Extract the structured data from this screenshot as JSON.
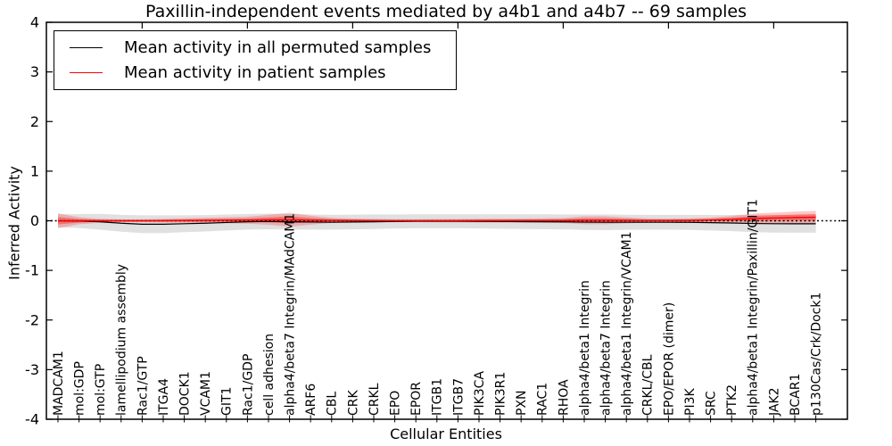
{
  "title": "Paxillin-independent events mediated by a4b1 and a4b7 -- 69 samples",
  "legend": {
    "items": [
      {
        "label": "Mean activity in all permuted samples",
        "color": "#000000"
      },
      {
        "label": "Mean activity in patient samples",
        "color": "#ff0000"
      }
    ],
    "position": "upper left"
  },
  "chart_data": {
    "type": "line",
    "title": "Paxillin-independent events mediated by a4b1 and a4b7 -- 69 samples",
    "xlabel": "Cellular Entities",
    "ylabel": "Inferred Activity",
    "ylim": [
      -4,
      4
    ],
    "yticks": [
      -4,
      -3,
      -2,
      -1,
      0,
      1,
      2,
      3,
      4
    ],
    "ytick_labels": [
      "-4",
      "-3",
      "-2",
      "-1",
      "0",
      "1",
      "2",
      "3",
      "4"
    ],
    "grid": false,
    "legend_position": "upper left",
    "zero_line": {
      "y": 0,
      "style": "dotted",
      "color": "#000000"
    },
    "categories": [
      "MADCAM1",
      "mol:GDP",
      "mol:GTP",
      "lamellipodium assembly",
      "Rac1/GTP",
      "ITGA4",
      "DOCK1",
      "VCAM1",
      "GIT1",
      "Rac1/GDP",
      "cell adhesion",
      "alpha4/beta7 Integrin/MAdCAM1",
      "ARF6",
      "CBL",
      "CRK",
      "CRKL",
      "EPO",
      "EPOR",
      "ITGB1",
      "ITGB7",
      "PIK3CA",
      "PIK3R1",
      "PXN",
      "RAC1",
      "RHOA",
      "alpha4/beta1 Integrin",
      "alpha4/beta7 Integrin",
      "alpha4/beta1 Integrin/VCAM1",
      "CRKL/CBL",
      "EPO/EPOR (dimer)",
      "PI3K",
      "SRC",
      "PTK2",
      "alpha4/beta1 Integrin/Paxillin/GIT1",
      "JAK2",
      "BCAR1",
      "p130Cas/Crk/Dock1"
    ],
    "series": [
      {
        "name": "Mean activity in all permuted samples",
        "color": "#000000",
        "values": [
          0.0,
          -0.005,
          -0.02,
          -0.05,
          -0.07,
          -0.07,
          -0.06,
          -0.05,
          -0.035,
          -0.02,
          -0.015,
          -0.02,
          -0.025,
          -0.03,
          -0.025,
          -0.02,
          -0.015,
          -0.01,
          -0.01,
          -0.01,
          -0.012,
          -0.015,
          -0.018,
          -0.02,
          -0.022,
          -0.028,
          -0.03,
          -0.03,
          -0.03,
          -0.03,
          -0.032,
          -0.038,
          -0.045,
          -0.055,
          -0.06,
          -0.06,
          -0.06
        ],
        "band_halfwidth": [
          0.13,
          0.14,
          0.16,
          0.17,
          0.18,
          0.18,
          0.17,
          0.165,
          0.16,
          0.158,
          0.158,
          0.158,
          0.152,
          0.15,
          0.148,
          0.147,
          0.143,
          0.14,
          0.14,
          0.14,
          0.142,
          0.146,
          0.148,
          0.15,
          0.15,
          0.156,
          0.158,
          0.152,
          0.15,
          0.15,
          0.152,
          0.158,
          0.165,
          0.175,
          0.178,
          0.18,
          0.18
        ]
      },
      {
        "name": "Mean activity in patient samples",
        "color": "#ff0000",
        "values": [
          0.0,
          0.0,
          0.0,
          0.0,
          0.0,
          0.002,
          0.005,
          0.008,
          0.01,
          0.012,
          0.018,
          0.02,
          0.012,
          0.008,
          0.005,
          0.003,
          0.002,
          0.002,
          0.002,
          0.002,
          0.003,
          0.003,
          0.004,
          0.005,
          0.006,
          0.01,
          0.01,
          0.008,
          0.005,
          0.005,
          0.008,
          0.015,
          0.025,
          0.045,
          0.055,
          0.065,
          0.07
        ],
        "band_halfwidth": [
          0.15,
          0.07,
          0.04,
          0.03,
          0.03,
          0.038,
          0.045,
          0.052,
          0.06,
          0.07,
          0.1,
          0.14,
          0.09,
          0.05,
          0.04,
          0.035,
          0.03,
          0.03,
          0.033,
          0.035,
          0.038,
          0.04,
          0.04,
          0.045,
          0.05,
          0.08,
          0.08,
          0.06,
          0.042,
          0.04,
          0.042,
          0.05,
          0.07,
          0.1,
          0.11,
          0.12,
          0.13
        ]
      }
    ],
    "band_colors": {
      "permuted": "rgba(0,0,0,0.12)",
      "patient_outer": "rgba(255,0,0,0.22)",
      "patient_inner": "rgba(255,0,0,0.35)"
    }
  }
}
